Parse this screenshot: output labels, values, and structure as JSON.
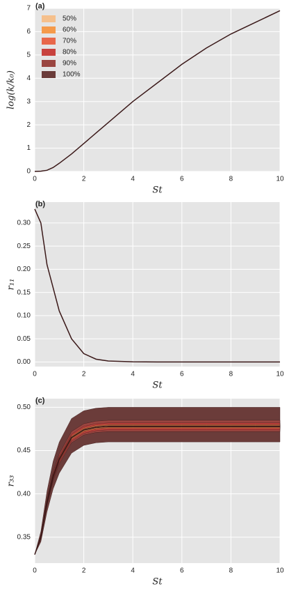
{
  "chart_data": [
    {
      "type": "line",
      "panel_label": "(a)",
      "xlabel": "St",
      "ylabel": "log(k/k₀)",
      "x": [
        0,
        0.25,
        0.5,
        0.75,
        1,
        1.5,
        2,
        2.5,
        3,
        4,
        5,
        6,
        7,
        8,
        9,
        10
      ],
      "values": [
        0,
        0.01,
        0.05,
        0.17,
        0.35,
        0.75,
        1.2,
        1.65,
        2.1,
        3.0,
        3.8,
        4.6,
        5.3,
        5.9,
        6.4,
        6.9
      ],
      "color": "#3a1818",
      "xlim": [
        0,
        10
      ],
      "xticks": [
        0,
        2,
        4,
        6,
        8,
        10
      ],
      "ylim": [
        0,
        7
      ],
      "yticks": [
        0,
        1,
        2,
        3,
        4,
        5,
        6,
        7
      ],
      "grid": true,
      "legend": [
        {
          "name": "50%",
          "color": "#f5c08c"
        },
        {
          "name": "60%",
          "color": "#f59a4a"
        },
        {
          "name": "70%",
          "color": "#e8674a"
        },
        {
          "name": "80%",
          "color": "#c8423e"
        },
        {
          "name": "90%",
          "color": "#9a4540"
        },
        {
          "name": "100%",
          "color": "#6b3c3a"
        }
      ]
    },
    {
      "type": "line",
      "panel_label": "(b)",
      "xlabel": "St",
      "ylabel": "r₁₁",
      "x": [
        0,
        0.25,
        0.5,
        0.75,
        1,
        1.5,
        2,
        2.5,
        3,
        4,
        5,
        6,
        7,
        8,
        9,
        10
      ],
      "values": [
        0.33,
        0.3,
        0.21,
        0.16,
        0.11,
        0.05,
        0.018,
        0.006,
        0.002,
        0.0003,
        0,
        0,
        0,
        0,
        0,
        0
      ],
      "color": "#3a1818",
      "xlim": [
        0,
        10
      ],
      "xticks": [
        0,
        2,
        4,
        6,
        8,
        10
      ],
      "ylim": [
        -0.01,
        0.345
      ],
      "yticks": [
        {
          "value": 0,
          "label": "0.00"
        },
        0.05,
        {
          "value": 0.1,
          "label": "0.10"
        },
        0.15,
        {
          "value": 0.2,
          "label": "0.20"
        },
        0.25,
        {
          "value": 0.3,
          "label": "0.30"
        }
      ],
      "grid": true
    },
    {
      "type": "band",
      "panel_label": "(c)",
      "xlabel": "St",
      "ylabel": "r₃₃",
      "x": [
        0,
        0.25,
        0.5,
        0.75,
        1,
        1.5,
        2,
        2.5,
        3,
        4,
        5,
        6,
        7,
        8,
        9,
        10
      ],
      "values": [
        0.33,
        0.35,
        0.39,
        0.42,
        0.44,
        0.465,
        0.474,
        0.477,
        0.478,
        0.478,
        0.478,
        0.478,
        0.478,
        0.478,
        0.478,
        0.478
      ],
      "color": "#3a1818",
      "series": [
        {
          "color": "#f5c08c",
          "lower": [
            0.33,
            0.34976,
            0.38952,
            0.41936,
            0.43928,
            0.4642,
            0.4732,
            0.4762,
            0.4772,
            0.4772,
            0.4772,
            0.4772,
            0.4772,
            0.4772,
            0.4772,
            0.4772
          ],
          "upper": [
            0.33,
            0.35024,
            0.39048,
            0.42064,
            0.44072,
            0.4658,
            0.4748,
            0.4778,
            0.4788,
            0.4788,
            0.4788,
            0.4788,
            0.4788,
            0.4788,
            0.4788,
            0.4788
          ]
        },
        {
          "color": "#f59a4a",
          "lower": [
            0.33,
            0.34955,
            0.3891,
            0.4188,
            0.43865,
            0.4635,
            0.4725,
            0.4755,
            0.4765,
            0.4765,
            0.4765,
            0.4765,
            0.4765,
            0.4765,
            0.4765,
            0.4765
          ],
          "upper": [
            0.33,
            0.35045,
            0.3909,
            0.4212,
            0.44135,
            0.4665,
            0.4755,
            0.4785,
            0.4795,
            0.4795,
            0.4795,
            0.4795,
            0.4795,
            0.4795,
            0.4795,
            0.4795
          ]
        },
        {
          "color": "#e8674a",
          "lower": [
            0.33,
            0.34925,
            0.3885,
            0.418,
            0.43775,
            0.4625,
            0.4715,
            0.4745,
            0.4755,
            0.4755,
            0.4755,
            0.4755,
            0.4755,
            0.4755,
            0.4755,
            0.4755
          ],
          "upper": [
            0.33,
            0.35075,
            0.3915,
            0.422,
            0.44225,
            0.4675,
            0.4765,
            0.4795,
            0.4805,
            0.4805,
            0.4805,
            0.4805,
            0.4805,
            0.4805,
            0.4805,
            0.4805
          ]
        },
        {
          "color": "#c8423e",
          "lower": [
            0.33,
            0.3488,
            0.3876,
            0.4168,
            0.4364,
            0.461,
            0.47,
            0.473,
            0.474,
            0.474,
            0.474,
            0.474,
            0.474,
            0.474,
            0.474,
            0.474
          ],
          "upper": [
            0.33,
            0.3512,
            0.3924,
            0.4232,
            0.4436,
            0.469,
            0.478,
            0.481,
            0.482,
            0.482,
            0.482,
            0.482,
            0.482,
            0.482,
            0.482,
            0.482
          ]
        },
        {
          "color": "#9a4540",
          "lower": [
            0.33,
            0.3482,
            0.3864,
            0.4152,
            0.4346,
            0.459,
            0.468,
            0.471,
            0.472,
            0.472,
            0.472,
            0.472,
            0.472,
            0.472,
            0.472,
            0.472
          ],
          "upper": [
            0.33,
            0.3521,
            0.3942,
            0.4256,
            0.4463,
            0.472,
            0.481,
            0.484,
            0.485,
            0.485,
            0.485,
            0.485,
            0.485,
            0.485,
            0.485,
            0.485
          ]
        },
        {
          "color": "#6b3c3a",
          "lower": [
            0.33,
            0.3446,
            0.3792,
            0.4056,
            0.4238,
            0.447,
            0.456,
            0.459,
            0.46,
            0.46,
            0.46,
            0.46,
            0.46,
            0.46,
            0.46,
            0.46
          ],
          "upper": [
            0.33,
            0.3566,
            0.4032,
            0.4376,
            0.4598,
            0.487,
            0.496,
            0.499,
            0.5,
            0.5,
            0.5,
            0.5,
            0.5,
            0.5,
            0.5,
            0.5
          ]
        }
      ],
      "xlim": [
        0,
        10
      ],
      "xticks": [
        0,
        2,
        4,
        6,
        8,
        10
      ],
      "ylim": [
        0.32,
        0.51
      ],
      "yticks": [
        0.35,
        {
          "value": 0.4,
          "label": "0.40"
        },
        0.45,
        {
          "value": 0.5,
          "label": "0.50"
        }
      ],
      "grid": true
    }
  ]
}
